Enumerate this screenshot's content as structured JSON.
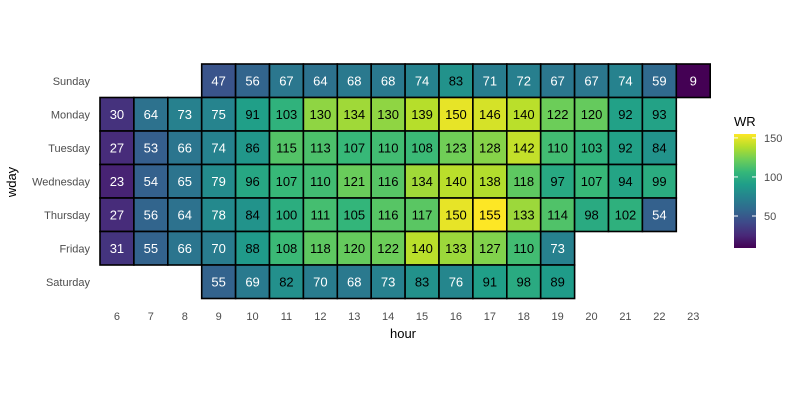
{
  "chart_data": {
    "type": "heatmap",
    "xlabel": "hour",
    "ylabel": "wday",
    "x": [
      6,
      7,
      8,
      9,
      10,
      11,
      12,
      13,
      14,
      15,
      16,
      17,
      18,
      19,
      20,
      21,
      22,
      23
    ],
    "y": [
      "Sunday",
      "Monday",
      "Tuesday",
      "Wednesday",
      "Thursday",
      "Friday",
      "Saturday"
    ],
    "values": [
      [
        null,
        null,
        null,
        47,
        56,
        67,
        64,
        68,
        68,
        74,
        83,
        71,
        72,
        67,
        67,
        74,
        59,
        9
      ],
      [
        30,
        64,
        73,
        75,
        91,
        103,
        130,
        134,
        130,
        139,
        150,
        146,
        140,
        122,
        120,
        92,
        93,
        null
      ],
      [
        27,
        53,
        66,
        74,
        86,
        115,
        113,
        107,
        110,
        108,
        123,
        128,
        142,
        110,
        103,
        92,
        84,
        null
      ],
      [
        23,
        54,
        65,
        79,
        96,
        107,
        110,
        121,
        116,
        134,
        140,
        138,
        118,
        97,
        107,
        94,
        99,
        null
      ],
      [
        27,
        56,
        64,
        78,
        84,
        100,
        111,
        105,
        116,
        117,
        150,
        155,
        133,
        114,
        98,
        102,
        54,
        null
      ],
      [
        31,
        55,
        66,
        70,
        88,
        108,
        118,
        120,
        122,
        140,
        133,
        127,
        110,
        73,
        null,
        null,
        null,
        null
      ],
      [
        null,
        null,
        null,
        55,
        69,
        82,
        70,
        68,
        73,
        83,
        76,
        91,
        98,
        89,
        null,
        null,
        null,
        null
      ]
    ],
    "legend": {
      "title": "WR",
      "ticks": [
        50,
        100,
        150
      ],
      "range": [
        9,
        155
      ],
      "colormap": "viridis",
      "position": "right"
    },
    "grid": false
  }
}
